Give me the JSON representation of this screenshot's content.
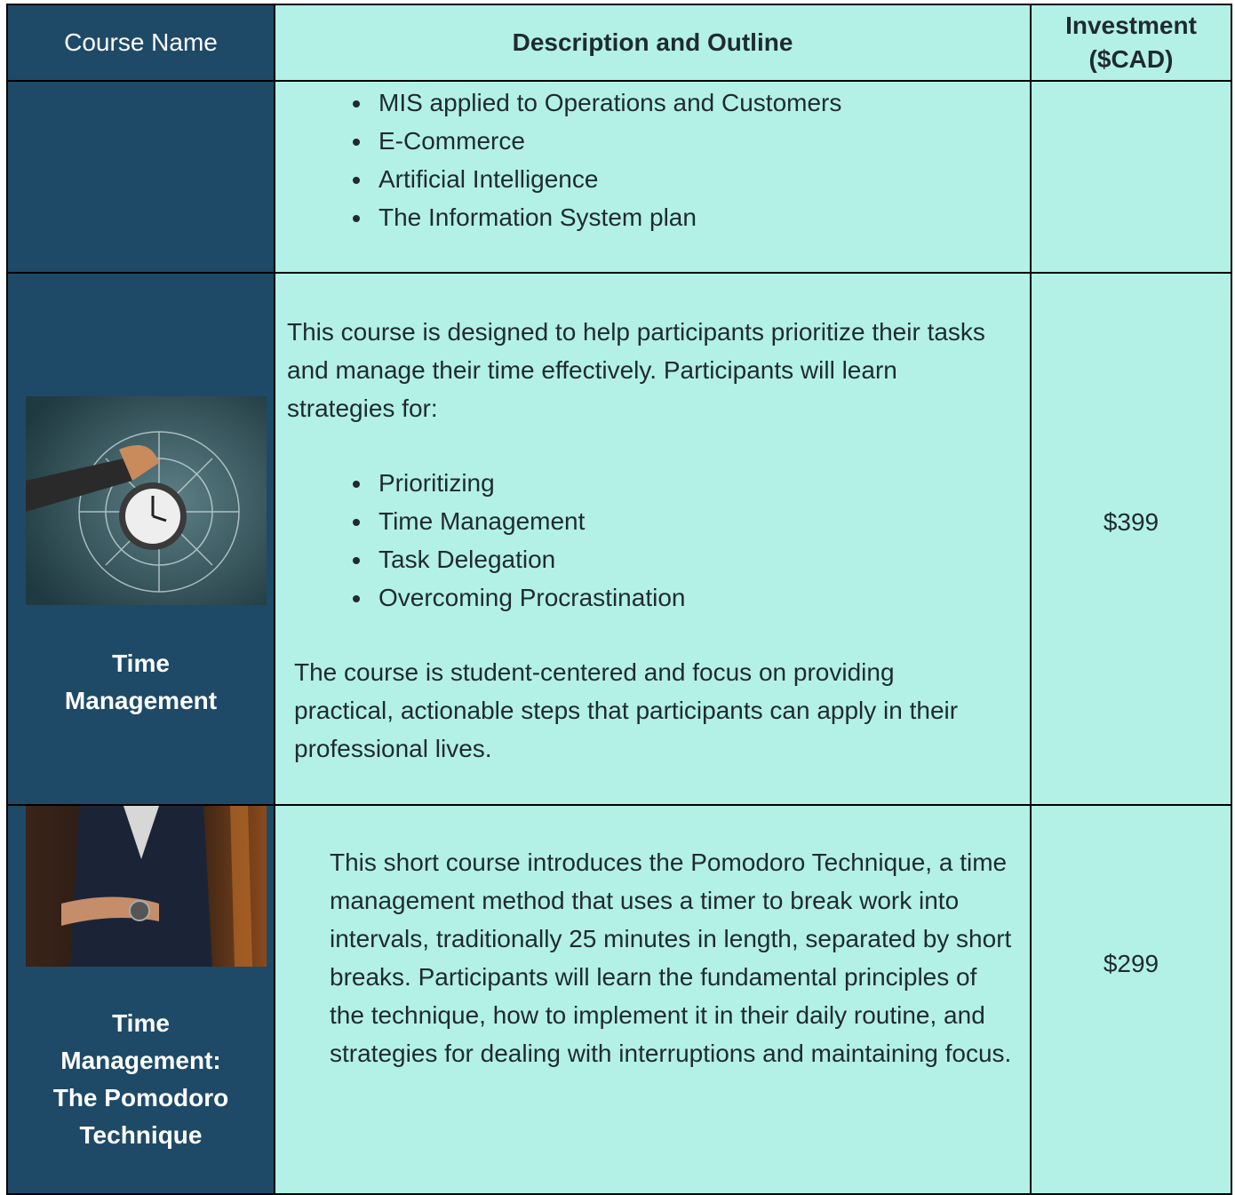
{
  "table": {
    "headers": [
      "Course Name",
      "Description and Outline",
      "Investment ($CAD)"
    ],
    "rows": [
      {
        "bullets": [
          "MIS applied to Operations and Customers",
          "E-Commerce",
          "Artificial Intelligence",
          "The Information System plan"
        ]
      },
      {
        "name": "Time Management",
        "intro": "This course is designed to help participants prioritize their tasks and manage their time effectively. Participants will learn strategies for:",
        "bullets": [
          "Prioritizing",
          "Time Management",
          "Task Delegation",
          "Overcoming Procrastination"
        ],
        "outro": "The course is student-centered and focus on providing practical, actionable steps that participants can apply in their professional lives.",
        "price": "$399"
      },
      {
        "name": "Time Management: The Pomodoro Technique",
        "intro": "This short course introduces the Pomodoro Technique, a time management method that uses a timer to break work into intervals, traditionally 25 minutes in length, separated by short breaks. Participants will learn the fundamental principles of the technique, how to implement it in their daily routine, and strategies for dealing with interruptions and maintaining focus.",
        "price": "$299"
      }
    ]
  }
}
